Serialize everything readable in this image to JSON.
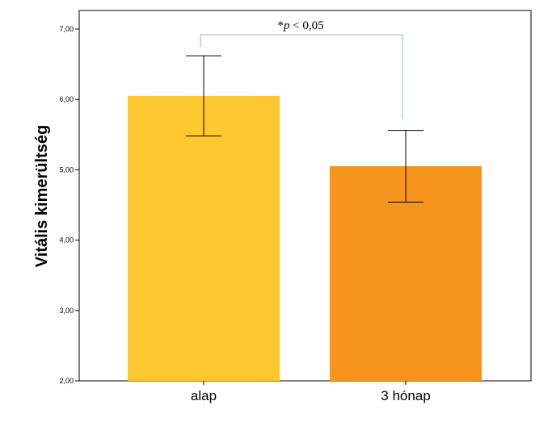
{
  "chart_data": {
    "type": "bar",
    "title": "",
    "xlabel": "",
    "ylabel": "Vitális kimerültség",
    "categories": [
      "alap",
      "3 hónap"
    ],
    "values": [
      6.05,
      5.05
    ],
    "error_bars": {
      "lower": [
        5.48,
        4.54
      ],
      "upper": [
        6.62,
        5.56
      ]
    },
    "bar_colors": [
      "#FDC82F",
      "#F7941D"
    ],
    "ylim": [
      2.0,
      7.0
    ],
    "yticks": [
      "2,00",
      "3,00",
      "4,00",
      "5,00",
      "6,00",
      "7,00"
    ],
    "ytick_values": [
      2,
      3,
      4,
      5,
      6,
      7
    ],
    "grid": false,
    "legend": "none",
    "annotation": {
      "star": "*",
      "p": "p",
      "rest": " < 0,05",
      "bracket_color": "#8FAFD9"
    }
  }
}
